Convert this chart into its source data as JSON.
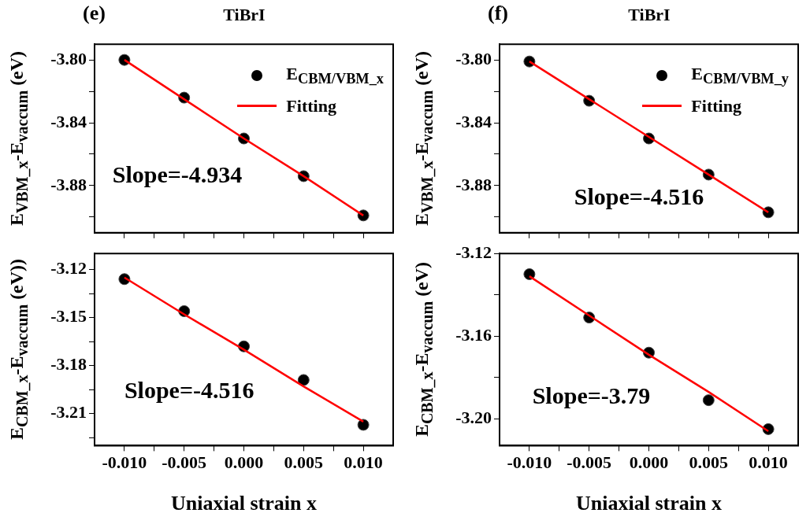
{
  "chart_data": [
    {
      "type": "scatter",
      "title": "(e)",
      "subtitle": "TiBrI",
      "ylabel": "E$_{VBM_x}$-E$_{vaccum}$ (eV)",
      "x": [
        -0.01,
        -0.005,
        0,
        0.005,
        0.01
      ],
      "series": [
        {
          "name": "E$_{CBM/VBM_x}$",
          "color": "#000000",
          "marker": "circle",
          "values": [
            -3.8,
            -3.824,
            -3.85,
            -3.874,
            -3.899
          ]
        },
        {
          "name": "Fitting",
          "type": "line",
          "color": "#ff0000",
          "marker": "none",
          "line_style": "solid",
          "values": [
            -3.8,
            -3.825,
            -3.85,
            -3.874,
            -3.899
          ]
        }
      ],
      "xlim": [
        -0.0125,
        0.0125
      ],
      "xticks": [
        {
          "value": -0.01,
          "label": null
        },
        {
          "value": -0.0075,
          "label": null
        },
        {
          "value": -0.005,
          "label": null
        },
        {
          "value": -0.0025,
          "label": null
        },
        {
          "value": 0,
          "label": null
        },
        {
          "value": 0.0025,
          "label": null
        },
        {
          "value": 0.005,
          "label": null
        },
        {
          "value": 0.0075,
          "label": null
        },
        {
          "value": 0.01,
          "label": null
        }
      ],
      "ylim": [
        -3.91,
        -3.79
      ],
      "yticks": [
        {
          "value": -3.8,
          "label": "-3.80"
        },
        {
          "value": -3.82,
          "label": null
        },
        {
          "value": -3.84,
          "label": "-3.84"
        },
        {
          "value": -3.86,
          "label": null
        },
        {
          "value": -3.88,
          "label": "-3.88"
        },
        {
          "value": -3.9,
          "label": null
        }
      ],
      "tick_labels": "y",
      "legend": "top right",
      "grid": false,
      "annotations": [
        "Slope=-4.934"
      ]
    },
    {
      "type": "scatter",
      "ylabel": "E$_{CBM_x}$-E$_{vaccum}$ (eV))",
      "xlabel": "Uniaxial strain x",
      "x": [
        -0.01,
        -0.005,
        0,
        0.005,
        0.01
      ],
      "series": [
        {
          "color": "#000000",
          "marker": "circle",
          "values": [
            -3.126,
            -3.146,
            -3.168,
            -3.189,
            -3.217
          ]
        },
        {
          "type": "line",
          "color": "#ff0000",
          "marker": "none",
          "line_style": "solid",
          "values": [
            -3.125,
            -3.148,
            -3.17,
            -3.193,
            -3.215
          ]
        }
      ],
      "xlim": [
        -0.0125,
        0.0125
      ],
      "xticks": [
        {
          "value": -0.01,
          "label": "-0.010"
        },
        {
          "value": -0.0075,
          "label": null
        },
        {
          "value": -0.005,
          "label": "-0.005"
        },
        {
          "value": -0.0025,
          "label": null
        },
        {
          "value": 0,
          "label": "0.000"
        },
        {
          "value": 0.0025,
          "label": null
        },
        {
          "value": 0.005,
          "label": "0.005"
        },
        {
          "value": 0.0075,
          "label": null
        },
        {
          "value": 0.01,
          "label": "0.010"
        }
      ],
      "ylim": [
        -3.23,
        -3.11
      ],
      "yticks": [
        {
          "value": -3.12,
          "label": "-3.12"
        },
        {
          "value": -3.135,
          "label": null
        },
        {
          "value": -3.15,
          "label": "-3.15"
        },
        {
          "value": -3.165,
          "label": null
        },
        {
          "value": -3.18,
          "label": "-3.18"
        },
        {
          "value": -3.195,
          "label": null
        },
        {
          "value": -3.21,
          "label": "-3.21"
        },
        {
          "value": -3.225,
          "label": null
        }
      ],
      "grid": false,
      "annotations": [
        "Slope=-4.516"
      ]
    },
    {
      "type": "scatter",
      "title": "(f)",
      "subtitle": "TiBrI",
      "ylabel": "E$_{VBM_x}$-E$_{vaccum}$ (eV)",
      "x": [
        -0.01,
        -0.005,
        0,
        0.005,
        0.01
      ],
      "series": [
        {
          "name": "E$_{CBM/VBM_y}$",
          "color": "#000000",
          "marker": "circle",
          "values": [
            -3.801,
            -3.826,
            -3.85,
            -3.873,
            -3.897
          ]
        },
        {
          "name": "Fitting",
          "type": "line",
          "color": "#ff0000",
          "marker": "none",
          "line_style": "solid",
          "values": [
            -3.801,
            -3.825,
            -3.849,
            -3.873,
            -3.897
          ]
        }
      ],
      "xlim": [
        -0.0125,
        0.0125
      ],
      "xticks": [
        {
          "value": -0.01,
          "label": null
        },
        {
          "value": -0.0075,
          "label": null
        },
        {
          "value": -0.005,
          "label": null
        },
        {
          "value": -0.0025,
          "label": null
        },
        {
          "value": 0,
          "label": null
        },
        {
          "value": 0.0025,
          "label": null
        },
        {
          "value": 0.005,
          "label": null
        },
        {
          "value": 0.0075,
          "label": null
        },
        {
          "value": 0.01,
          "label": null
        }
      ],
      "ylim": [
        -3.91,
        -3.79
      ],
      "yticks": [
        {
          "value": -3.8,
          "label": "-3.80"
        },
        {
          "value": -3.82,
          "label": null
        },
        {
          "value": -3.84,
          "label": "-3.84"
        },
        {
          "value": -3.86,
          "label": null
        },
        {
          "value": -3.88,
          "label": "-3.88"
        },
        {
          "value": -3.9,
          "label": null
        }
      ],
      "tick_labels": "y",
      "legend": "top right",
      "grid": false,
      "annotations": [
        "Slope=-4.516"
      ]
    },
    {
      "type": "scatter",
      "ylabel": "E$_{CBM_x}$-E$_{vaccum}$ (eV)",
      "xlabel": "Uniaxial strain x",
      "x": [
        -0.01,
        -0.005,
        0,
        0.005,
        0.01
      ],
      "series": [
        {
          "color": "#000000",
          "marker": "circle",
          "values": [
            -3.13,
            -3.151,
            -3.168,
            -3.191,
            -3.205
          ]
        },
        {
          "type": "line",
          "color": "#ff0000",
          "marker": "none",
          "line_style": "solid",
          "values": [
            -3.131,
            -3.15,
            -3.169,
            -3.187,
            -3.206
          ]
        }
      ],
      "xlim": [
        -0.0125,
        0.0125
      ],
      "xticks": [
        {
          "value": -0.01,
          "label": "-0.010"
        },
        {
          "value": -0.0075,
          "label": null
        },
        {
          "value": -0.005,
          "label": "-0.005"
        },
        {
          "value": -0.0025,
          "label": null
        },
        {
          "value": 0,
          "label": "0.000"
        },
        {
          "value": 0.0025,
          "label": null
        },
        {
          "value": 0.005,
          "label": "0.005"
        },
        {
          "value": 0.0075,
          "label": null
        },
        {
          "value": 0.01,
          "label": "0.010"
        }
      ],
      "ylim": [
        -3.213,
        -3.12
      ],
      "yticks": [
        {
          "value": -3.12,
          "label": "-3.12"
        },
        {
          "value": -3.14,
          "label": null
        },
        {
          "value": -3.16,
          "label": "-3.16"
        },
        {
          "value": -3.18,
          "label": null
        },
        {
          "value": -3.2,
          "label": "-3.20"
        }
      ],
      "grid": false,
      "annotations": [
        "Slope=-3.79"
      ]
    }
  ]
}
